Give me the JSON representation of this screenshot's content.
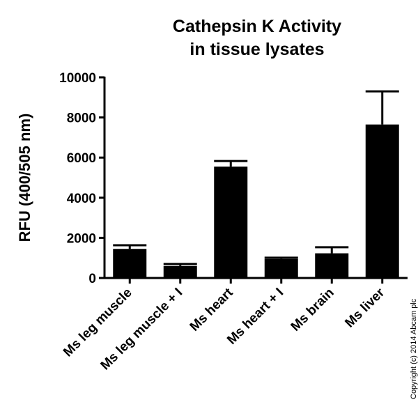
{
  "chart_data": {
    "type": "bar",
    "title_lines": [
      "Cathepsin K Activity",
      "in tissue lysates"
    ],
    "xlabel": "",
    "ylabel": "RFU (400/505 nm)",
    "ylim": [
      0,
      10000
    ],
    "yticks": [
      0,
      2000,
      4000,
      6000,
      8000,
      10000
    ],
    "categories": [
      "Ms leg muscle",
      "Ms leg muscle + I",
      "Ms heart",
      "Ms heart + I",
      "Ms brain",
      "Ms liver"
    ],
    "values": [
      1450,
      600,
      5550,
      950,
      1230,
      7650
    ],
    "errors": [
      180,
      100,
      280,
      60,
      300,
      1650
    ],
    "bar_color": "#000000",
    "grid": false,
    "legend": "none"
  },
  "copyright": "Copyright (c) 2014 Abcam plc"
}
